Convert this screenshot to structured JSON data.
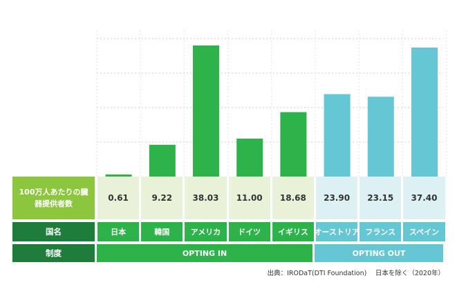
{
  "chart_data": {
    "type": "bar",
    "categories": [
      "日本",
      "韓国",
      "アメリカ",
      "ドイツ",
      "イギリス",
      "オーストリア",
      "フランス",
      "スペイン"
    ],
    "values": [
      0.61,
      9.22,
      38.03,
      11.0,
      18.68,
      23.9,
      23.15,
      37.4
    ],
    "value_labels": [
      "0.61",
      "9.22",
      "38.03",
      "11.00",
      "18.68",
      "23.90",
      "23.15",
      "37.40"
    ],
    "system": [
      "in",
      "in",
      "in",
      "in",
      "in",
      "out",
      "out",
      "out"
    ],
    "ylim": [
      0,
      40
    ],
    "grid": true,
    "colors": {
      "opting_in": "#2db34a",
      "opting_out": "#65c6d4",
      "grid": "#cccccc"
    }
  },
  "table": {
    "row_value_label": "100万人あたりの臓器提供者数",
    "row_country_label": "国名",
    "row_system_label": "制度",
    "opting_in_label": "OPTING IN",
    "opting_out_label": "OPTING OUT"
  },
  "source": "出典：IRODaT(DTI Foundation)　 日本を除く（2020年）",
  "colors": {
    "header_light": "#8cc63f",
    "header_dark": "#1e7d3a",
    "value_in_bg": "#e9f1d9",
    "value_out_bg": "#ddf0f3"
  }
}
